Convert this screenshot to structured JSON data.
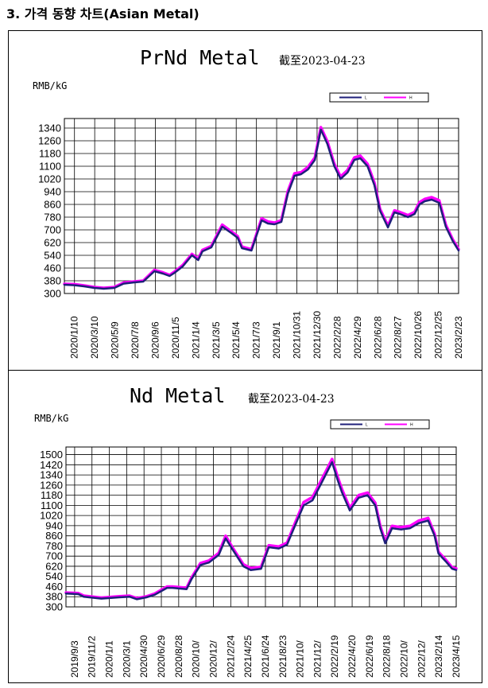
{
  "page": {
    "heading": "3. 가격 동향 차트(Asian Metal)"
  },
  "colors": {
    "low": "#1f1f7a",
    "high": "#ff00ff",
    "grid": "#000000",
    "frame": "#000000"
  },
  "chart_data": [
    {
      "type": "line",
      "title": "PrNd Metal",
      "date_label": "截至2023-04-23",
      "ylabel": "RMB/kG",
      "legend": [
        "L",
        "H"
      ],
      "legend_placement": "top-right",
      "grid": true,
      "ylim": [
        300,
        1400
      ],
      "yticks": [
        300,
        380,
        460,
        540,
        620,
        700,
        780,
        860,
        940,
        1020,
        1100,
        1180,
        1260,
        1340
      ],
      "xticks": [
        "2020/1/10",
        "2020/3/10",
        "2020/5/9",
        "2020/7/8",
        "2020/9/6",
        "2020/11/5",
        "2021/1/4",
        "2021/3/5",
        "2021/5/4",
        "2021/7/3",
        "2021/9/1",
        "2021/10/31",
        "2021/12/30",
        "2022/2/28",
        "2022/4/29",
        "2022/6/28",
        "2022/8/27",
        "2022/10/26",
        "2022/12/25",
        "2023/2/23"
      ],
      "x": [
        "2020/1/10",
        "2020/2/10",
        "2020/3/10",
        "2020/4/10",
        "2020/5/9",
        "2020/6/10",
        "2020/7/8",
        "2020/8/10",
        "2020/9/6",
        "2020/10/10",
        "2020/11/5",
        "2020/11/25",
        "2020/12/10",
        "2021/1/4",
        "2021/2/1",
        "2021/2/20",
        "2021/3/5",
        "2021/4/1",
        "2021/5/4",
        "2021/6/1",
        "2021/6/20",
        "2021/7/3",
        "2021/8/1",
        "2021/9/1",
        "2021/9/20",
        "2021/10/10",
        "2021/10/31",
        "2021/11/20",
        "2021/12/10",
        "2021/12/30",
        "2022/1/20",
        "2022/2/10",
        "2022/2/28",
        "2022/3/20",
        "2022/4/10",
        "2022/4/29",
        "2022/5/20",
        "2022/6/10",
        "2022/6/28",
        "2022/7/20",
        "2022/8/10",
        "2022/8/27",
        "2022/9/20",
        "2022/10/10",
        "2022/10/26",
        "2022/11/20",
        "2022/12/10",
        "2022/12/25",
        "2023/1/10",
        "2023/1/31",
        "2023/2/23",
        "2023/3/15",
        "2023/4/5",
        "2023/4/23"
      ],
      "series": [
        {
          "name": "L",
          "values": [
            355,
            352,
            345,
            335,
            330,
            335,
            362,
            370,
            375,
            440,
            425,
            410,
            430,
            470,
            540,
            510,
            565,
            590,
            720,
            680,
            650,
            585,
            570,
            760,
            740,
            735,
            750,
            930,
            1040,
            1050,
            1080,
            1140,
            1330,
            1240,
            1100,
            1020,
            1060,
            1140,
            1150,
            1100,
            980,
            820,
            715,
            810,
            800,
            780,
            800,
            860,
            880,
            890,
            870,
            720,
            630,
            570
          ]
        },
        {
          "name": "H",
          "values": [
            360,
            358,
            350,
            340,
            335,
            340,
            368,
            375,
            380,
            448,
            432,
            416,
            437,
            478,
            548,
            518,
            573,
            598,
            732,
            690,
            660,
            594,
            578,
            772,
            752,
            745,
            760,
            945,
            1055,
            1062,
            1095,
            1155,
            1345,
            1256,
            1115,
            1035,
            1075,
            1155,
            1166,
            1115,
            995,
            832,
            726,
            822,
            812,
            792,
            812,
            874,
            894,
            905,
            885,
            732,
            640,
            578
          ]
        }
      ]
    },
    {
      "type": "line",
      "title": "Nd Metal",
      "date_label": "截至2023-04-23",
      "ylabel": "RMB/kG",
      "legend": [
        "L",
        "H"
      ],
      "legend_placement": "top-right",
      "grid": true,
      "ylim": [
        300,
        1560
      ],
      "yticks": [
        300,
        380,
        460,
        540,
        620,
        700,
        780,
        860,
        940,
        1020,
        1100,
        1180,
        1260,
        1340,
        1420,
        1500
      ],
      "xticks": [
        "2019/9/3",
        "2019/11/2",
        "2020/1/1",
        "2020/3/1",
        "2020/4/30",
        "2020/6/29",
        "2020/8/28",
        "2020/10/",
        "2020/12/",
        "2021/2/24",
        "2021/4/25",
        "2021/6/24",
        "2021/8/23",
        "2021/10/",
        "2021/12/",
        "2022/2/19",
        "2022/4/20",
        "2022/6/19",
        "2022/8/18",
        "2022/10/",
        "2022/12/",
        "2023/2/14",
        "2023/4/15"
      ],
      "x": [
        "2019/9/3",
        "2019/10/15",
        "2019/11/2",
        "2020/1/1",
        "2020/3/1",
        "2020/4/5",
        "2020/4/30",
        "2020/6/1",
        "2020/6/29",
        "2020/8/10",
        "2020/8/28",
        "2020/10/15",
        "2020/11/1",
        "2020/12/1",
        "2020/12/30",
        "2021/2/1",
        "2021/2/24",
        "2021/3/20",
        "2021/4/25",
        "2021/5/20",
        "2021/6/24",
        "2021/7/20",
        "2021/8/23",
        "2021/9/20",
        "2021/10/15",
        "2021/11/15",
        "2021/12/15",
        "2022/1/15",
        "2022/2/19",
        "2022/3/10",
        "2022/3/25",
        "2022/4/20",
        "2022/5/20",
        "2022/6/19",
        "2022/7/15",
        "2022/8/1",
        "2022/8/18",
        "2022/9/10",
        "2022/10/10",
        "2022/11/10",
        "2022/12/10",
        "2023/1/10",
        "2023/2/1",
        "2023/2/14",
        "2023/3/10",
        "2023/4/1",
        "2023/4/15"
      ],
      "series": [
        {
          "name": "L",
          "values": [
            405,
            400,
            380,
            365,
            375,
            380,
            360,
            375,
            395,
            450,
            450,
            440,
            520,
            630,
            650,
            710,
            840,
            750,
            620,
            590,
            600,
            770,
            760,
            790,
            930,
            1100,
            1140,
            1280,
            1440,
            1300,
            1200,
            1060,
            1160,
            1180,
            1100,
            920,
            800,
            920,
            910,
            920,
            960,
            980,
            860,
            720,
            660,
            600,
            590
          ]
        },
        {
          "name": "H",
          "values": [
            412,
            408,
            388,
            372,
            383,
            388,
            368,
            382,
            404,
            460,
            460,
            450,
            532,
            645,
            665,
            725,
            860,
            765,
            635,
            605,
            615,
            785,
            775,
            805,
            950,
            1125,
            1165,
            1305,
            1465,
            1325,
            1225,
            1080,
            1180,
            1200,
            1120,
            938,
            815,
            938,
            928,
            938,
            980,
            1000,
            875,
            733,
            673,
            612,
            602
          ]
        }
      ]
    }
  ]
}
